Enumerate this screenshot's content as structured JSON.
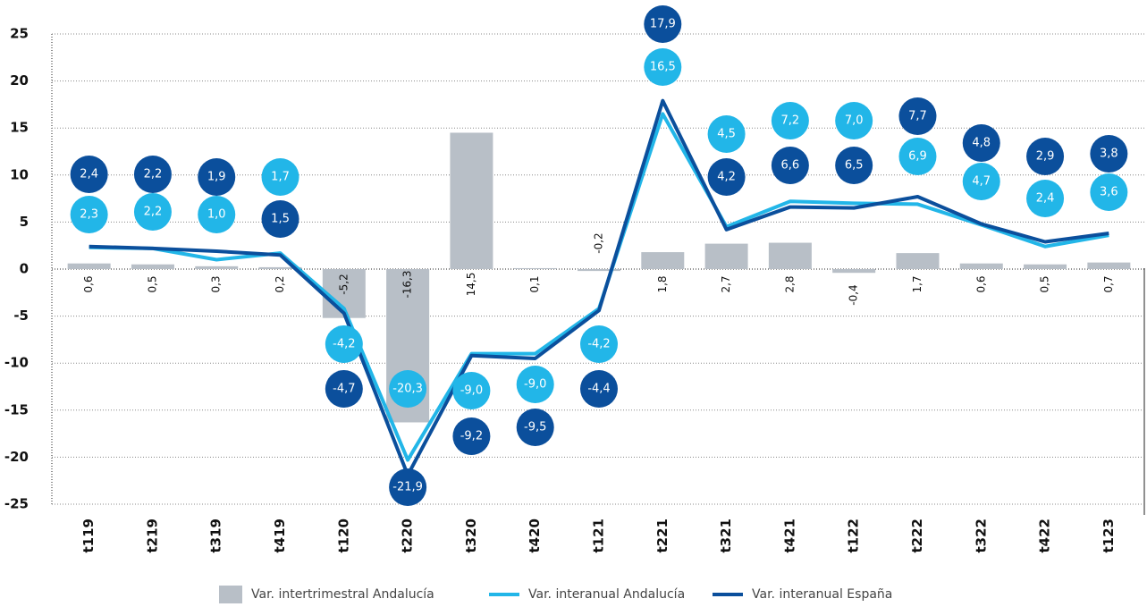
{
  "chart_data": {
    "type": "bar-line",
    "categories": [
      "t119",
      "t219",
      "t319",
      "t419",
      "t120",
      "t220",
      "t320",
      "t420",
      "t121",
      "t221",
      "t321",
      "t421",
      "t122",
      "t222",
      "t322",
      "t422",
      "t123"
    ],
    "ylim": [
      -25,
      25
    ],
    "yticks": [
      25,
      20,
      15,
      10,
      5,
      0,
      -5,
      -10,
      -15,
      -20,
      -25
    ],
    "grid": true,
    "series": [
      {
        "name": "Var. intertrimestral Andalucía",
        "type": "bar",
        "color": "#b8bfc7",
        "values": [
          0.6,
          0.5,
          0.3,
          0.2,
          -5.2,
          -16.3,
          14.5,
          0.1,
          -0.2,
          1.8,
          2.7,
          2.8,
          -0.4,
          1.7,
          0.6,
          0.5,
          0.7
        ],
        "value_labels": [
          "0,6",
          "0,5",
          "0,3",
          "0,2",
          "-5,2",
          "-16,3",
          "14,5",
          "0,1",
          "-0,2",
          "1,8",
          "2,7",
          "2,8",
          "-0,4",
          "1,7",
          "0,6",
          "0,5",
          "0,7"
        ]
      },
      {
        "name": "Var. interanual Andalucía",
        "type": "line",
        "color": "#22b6e8",
        "values": [
          2.3,
          2.2,
          1.0,
          1.7,
          -4.2,
          -20.3,
          -9.0,
          -9.0,
          -4.2,
          16.5,
          4.5,
          7.2,
          7.0,
          6.9,
          4.7,
          2.4,
          3.6
        ],
        "value_labels": [
          "2,3",
          "2,2",
          "1,0",
          "1,7",
          "-4,2",
          "-20,3",
          "-9,0",
          "-9,0",
          "-4,2",
          "16,5",
          "4,5",
          "7,2",
          "7,0",
          "6,9",
          "4,7",
          "2,4",
          "3,6"
        ]
      },
      {
        "name": "Var. interanual España",
        "type": "line",
        "color": "#0b4f9c",
        "values": [
          2.4,
          2.2,
          1.9,
          1.5,
          -4.7,
          -21.9,
          -9.2,
          -9.5,
          -4.4,
          17.9,
          4.2,
          6.6,
          6.5,
          7.7,
          4.8,
          2.9,
          3.8
        ],
        "value_labels": [
          "2,4",
          "2,2",
          "1,9",
          "1,5",
          "-4,7",
          "-21,9",
          "-9,2",
          "-9,5",
          "-4,4",
          "17,9",
          "4,2",
          "6,6",
          "6,5",
          "7,7",
          "4,8",
          "2,9",
          "3,8"
        ]
      }
    ]
  }
}
